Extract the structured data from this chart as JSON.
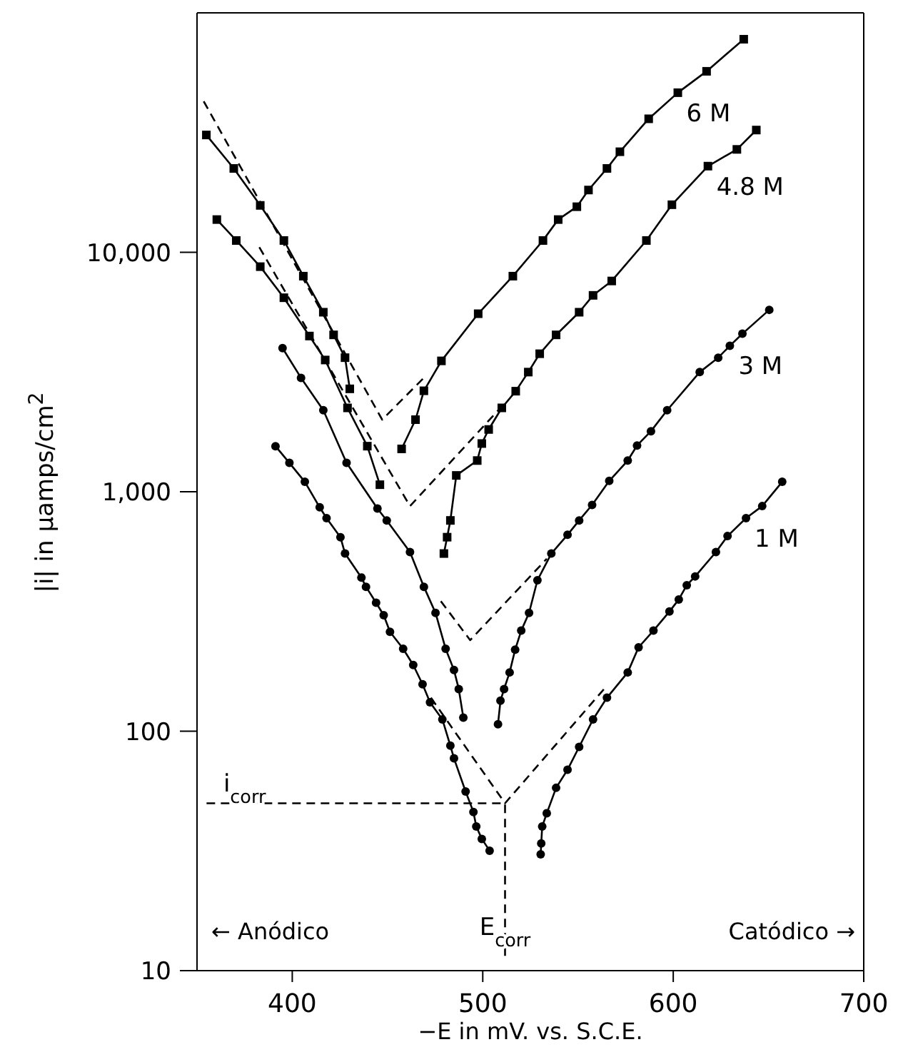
{
  "chart_data": {
    "type": "line",
    "xlabel": "−E in mV. vs. S.C.E.",
    "ylabel": "|i| in μamps/cm$^{2}$",
    "xlim": [
      350,
      700
    ],
    "xticks": [
      400,
      500,
      600,
      700
    ],
    "ylim": [
      10,
      100000
    ],
    "yticks": [
      {
        "value": 10,
        "label": "10"
      },
      {
        "value": 100,
        "label": "100"
      },
      {
        "value": 1000,
        "label": "1,000"
      },
      {
        "value": 10000,
        "label": "10,000"
      }
    ],
    "log": "y",
    "grid": false,
    "line_style": "solid",
    "series": [
      {
        "name": "6 M",
        "color": "#000000",
        "marker": "square",
        "x": [
          354.9,
          369.3,
          383.2,
          395.6,
          405.8,
          416.3,
          421.7,
          427.7,
          430.2,
          445,
          457.4,
          464.7,
          469.1,
          478.3,
          497.6,
          515.8,
          531.6,
          539.6,
          549.4,
          555.5,
          565.2,
          572.0,
          587.1,
          602.4,
          617.5,
          637.0
        ],
        "values": [
          30900,
          22400,
          15700,
          11200,
          7950,
          5620,
          4520,
          3630,
          2690,
          null,
          1510,
          2000,
          2640,
          3520,
          5540,
          7950,
          11200,
          13700,
          15500,
          18200,
          22400,
          26300,
          36100,
          46400,
          57000,
          77600
        ]
      },
      {
        "name": "4.8 M",
        "color": "#000000",
        "marker": "square",
        "x": [
          360.4,
          370.6,
          383.2,
          395.6,
          409.0,
          417.3,
          429.0,
          439.4,
          446.0,
          463,
          479.6,
          481.3,
          483.0,
          486.1,
          497.1,
          499.5,
          503.1,
          510.0,
          517.3,
          523.9,
          529.9,
          538.5,
          550.6,
          557.9,
          567.7,
          585.9,
          599.3,
          618.2,
          633.4,
          643.6
        ],
        "values": [
          13700,
          11200,
          8710,
          6460,
          4470,
          3550,
          2240,
          1550,
          1070,
          null,
          552,
          646,
          759,
          1170,
          1350,
          1590,
          1820,
          2240,
          2630,
          3160,
          3770,
          4520,
          5620,
          6610,
          7590,
          11200,
          15800,
          22900,
          26900,
          32400
        ]
      },
      {
        "name": "3 M",
        "color": "#000000",
        "marker": "circle",
        "x": [
          394.9,
          404.6,
          416.3,
          428.5,
          444.7,
          449.6,
          461.8,
          469.1,
          475.2,
          480.5,
          484.9,
          487.4,
          489.8,
          498,
          508.0,
          509.3,
          511.2,
          514.1,
          517.0,
          520.2,
          524.3,
          528.7,
          536.0,
          544.5,
          550.6,
          557.4,
          566.4,
          576.1,
          581.0,
          588.3,
          596.8,
          613.9,
          623.6,
          629.7,
          636.3,
          650.4
        ],
        "values": [
          3980,
          2990,
          2190,
          1320,
          851,
          759,
          560,
          401,
          312,
          221,
          180,
          150,
          114,
          null,
          107,
          134,
          150,
          176,
          219,
          263,
          312,
          427,
          552,
          661,
          759,
          881,
          1110,
          1350,
          1560,
          1790,
          2190,
          3160,
          3630,
          4070,
          4570,
          5750
        ]
      },
      {
        "name": "1 M",
        "color": "#000000",
        "marker": "circle",
        "x": [
          391.2,
          398.5,
          406.6,
          414.4,
          418.0,
          425.3,
          427.7,
          436.3,
          438.7,
          444.0,
          448.0,
          451.3,
          458.2,
          463.5,
          468.4,
          472.3,
          478.8,
          483.0,
          484.9,
          491.0,
          495.1,
          496.6,
          499.5,
          503.6,
          517,
          530.4,
          530.7,
          531.2,
          533.6,
          538.5,
          544.5,
          550.6,
          557.9,
          565.2,
          576.1,
          581.8,
          589.6,
          598.0,
          602.9,
          607.1,
          611.5,
          622.4,
          628.5,
          638.2,
          646.7,
          657.2
        ],
        "values": [
          1550,
          1320,
          1100,
          861,
          776,
          646,
          552,
          438,
          401,
          344,
          305,
          260,
          221,
          189,
          157,
          132,
          112,
          87,
          77,
          56,
          46,
          40,
          35.5,
          31.7,
          null,
          30.6,
          34,
          40,
          45.4,
          58,
          69,
          86,
          112,
          138,
          176,
          224,
          263,
          316,
          355,
          407,
          443,
          560,
          653,
          776,
          871,
          1100
        ]
      },
      {
        "color": "#000000",
        "marker": "none",
        "line_style": "dashed",
        "x": [
          353.5,
          447.2,
          470.3
        ],
        "values": [
          42700,
          2000,
          3060
        ]
      },
      {
        "color": "#000000",
        "marker": "none",
        "line_style": "dashed",
        "x": [
          382.7,
          461.8,
          509.3
        ],
        "values": [
          10500,
          871,
          2240
        ]
      },
      {
        "color": "#000000",
        "marker": "none",
        "line_style": "dashed",
        "x": [
          478,
          493.4,
          533.6
        ],
        "values": [
          349,
          240,
          525
        ]
      },
      {
        "color": "#000000",
        "marker": "none",
        "line_style": "dashed",
        "x": [
          472.8,
          511.7,
          565.2
        ],
        "values": [
          138,
          50,
          155
        ]
      },
      {
        "color": "#000000",
        "marker": "none",
        "line_style": "dashed",
        "x": [
          355,
          511.7,
          511.7
        ],
        "values": [
          50,
          50,
          11
        ]
      }
    ],
    "annotations": [
      {
        "text": "i$_{corr}$",
        "x": 375,
        "y": 50
      },
      {
        "text": "E$_{corr}$",
        "x": 511.7,
        "y": 11
      },
      "← Anódico",
      "Catódico →"
    ]
  }
}
